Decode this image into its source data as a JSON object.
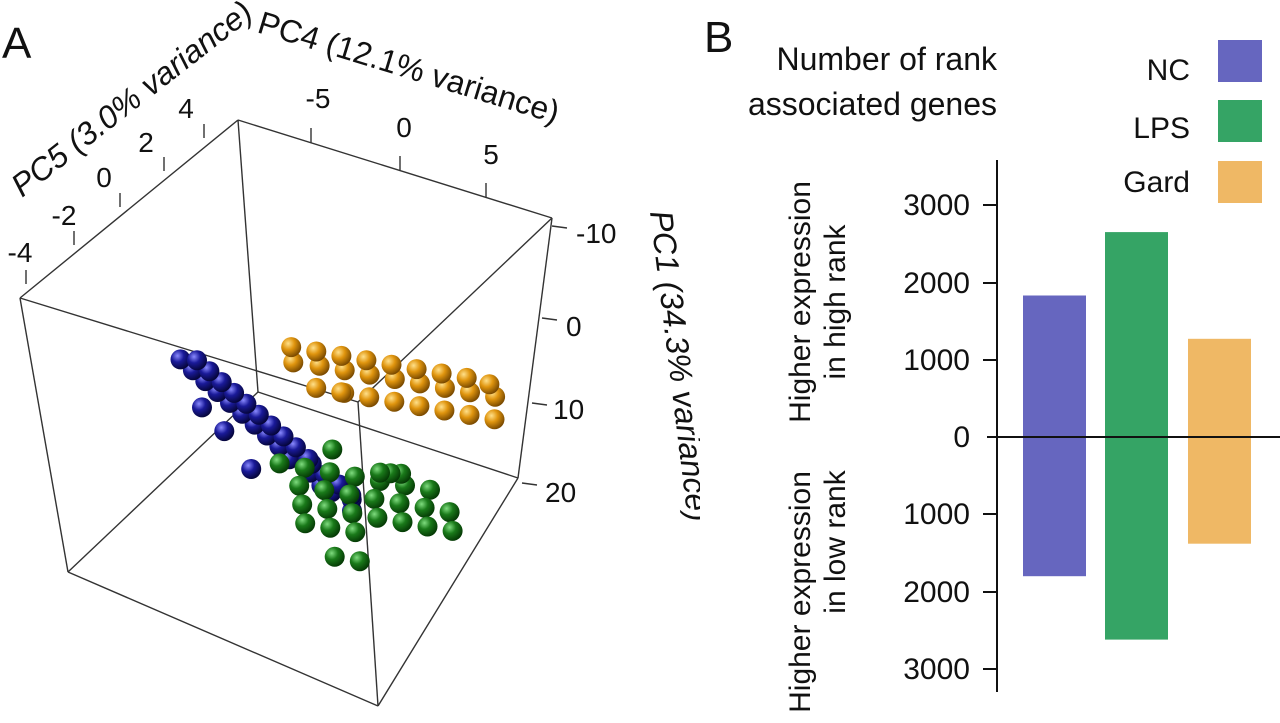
{
  "panel_a": {
    "letter": "A",
    "axes": {
      "pc4": {
        "title": "PC4 (12.1% variance)",
        "ticks": [
          "-5",
          "0",
          "5"
        ]
      },
      "pc5": {
        "title": "PC5 (3.0% variance)",
        "ticks": [
          "-4",
          "-2",
          "0",
          "2",
          "4"
        ]
      },
      "pc1": {
        "title": "PC1 (34.3% variance)",
        "ticks": [
          "-10",
          "0",
          "10",
          "20"
        ]
      }
    }
  },
  "panel_b": {
    "letter": "B",
    "title_line1": "Number of rank",
    "title_line2": "associated genes",
    "ylabel_high_line1": "Higher expression",
    "ylabel_high_line2": "in high rank",
    "ylabel_low_line1": "Higher expression",
    "ylabel_low_line2": "in low rank",
    "y_ticks": [
      "3000",
      "2000",
      "1000",
      "0",
      "1000",
      "2000",
      "3000"
    ],
    "legend": [
      {
        "label": "NC",
        "color": "#6666bf"
      },
      {
        "label": "LPS",
        "color": "#35a465"
      },
      {
        "label": "Gard",
        "color": "#efb865"
      }
    ]
  },
  "chart_data": [
    {
      "type": "scatter",
      "panel": "A",
      "dimensions": 3,
      "axis_titles": {
        "pc4": "PC4 (12.1% variance)",
        "pc5": "PC5 (3.0% variance)",
        "pc1": "PC1 (34.3% variance)"
      },
      "ranges": {
        "pc4": [
          -9,
          9
        ],
        "pc5": [
          -4,
          4
        ],
        "pc1": [
          -10,
          22
        ]
      },
      "series": [
        {
          "color": "#1a1a99",
          "points": [
            [
              -8.5,
              3.2,
              4.5
            ],
            [
              -7.8,
              3.0,
              4.3
            ],
            [
              -8.0,
              2.6,
              3.8
            ],
            [
              -7.2,
              2.8,
              4.8
            ],
            [
              -7.5,
              2.2,
              4.2
            ],
            [
              -6.8,
              2.4,
              4.6
            ],
            [
              -7.0,
              1.8,
              3.9
            ],
            [
              -6.5,
              2.0,
              4.4
            ],
            [
              -6.2,
              1.6,
              4.1
            ],
            [
              -6.6,
              1.2,
              3.7
            ],
            [
              -5.8,
              1.4,
              4.3
            ],
            [
              -6.0,
              0.8,
              3.5
            ],
            [
              -5.4,
              1.0,
              4.0
            ],
            [
              -5.6,
              0.4,
              3.3
            ],
            [
              -5.0,
              0.6,
              3.8
            ],
            [
              -5.2,
              0.0,
              3.1
            ],
            [
              -4.6,
              0.2,
              3.6
            ],
            [
              -4.8,
              -0.4,
              2.9
            ],
            [
              -4.2,
              -0.2,
              3.4
            ],
            [
              -4.4,
              -0.8,
              2.7
            ],
            [
              -3.8,
              -0.6,
              3.2
            ],
            [
              -4.0,
              -1.2,
              2.5
            ],
            [
              -3.4,
              -1.0,
              3.0
            ],
            [
              -3.6,
              -1.6,
              2.3
            ],
            [
              -3.0,
              -1.4,
              2.8
            ],
            [
              -3.2,
              -2.0,
              2.1
            ],
            [
              -2.6,
              -1.8,
              2.6
            ],
            [
              -2.8,
              -2.4,
              1.9
            ],
            [
              -2.2,
              -2.2,
              2.4
            ],
            [
              -6.9,
              -0.2,
              2.2
            ],
            [
              -5.9,
              -1.0,
              1.8
            ],
            [
              -8.9,
              1.0,
              2.5
            ]
          ]
        },
        {
          "color": "#e0950e",
          "points": [
            [
              -2.2,
              0.2,
              -1.0
            ],
            [
              -1.5,
              0.6,
              -0.4
            ],
            [
              -0.9,
              1.0,
              0.2
            ],
            [
              -0.3,
              1.4,
              0.8
            ],
            [
              0.3,
              1.8,
              1.4
            ],
            [
              0.9,
              2.2,
              2.0
            ],
            [
              1.5,
              2.6,
              2.6
            ],
            [
              2.1,
              3.0,
              3.2
            ],
            [
              2.7,
              3.4,
              3.8
            ],
            [
              -1.8,
              1.2,
              1.5
            ],
            [
              -1.2,
              1.6,
              2.1
            ],
            [
              -0.6,
              2.0,
              2.7
            ],
            [
              0.0,
              2.4,
              3.3
            ],
            [
              0.6,
              2.8,
              3.9
            ],
            [
              1.2,
              3.2,
              4.5
            ],
            [
              1.8,
              3.6,
              5.1
            ],
            [
              -1.0,
              -0.2,
              -0.8
            ],
            [
              -0.4,
              0.2,
              -0.2
            ],
            [
              0.2,
              0.6,
              0.4
            ],
            [
              0.8,
              1.0,
              1.0
            ],
            [
              1.4,
              1.4,
              1.6
            ],
            [
              2.0,
              1.8,
              2.2
            ],
            [
              2.6,
              2.2,
              2.8
            ],
            [
              3.2,
              2.6,
              3.4
            ],
            [
              -2.6,
              0.8,
              0.6
            ],
            [
              -2.0,
              1.2,
              1.2
            ],
            [
              3.6,
              3.0,
              4.0
            ]
          ]
        },
        {
          "color": "#1a7a1a",
          "points": [
            [
              -1.0,
              -1.0,
              14.0
            ],
            [
              -0.4,
              -0.6,
              14.6
            ],
            [
              0.2,
              -0.2,
              15.2
            ],
            [
              0.8,
              0.2,
              15.8
            ],
            [
              1.4,
              0.6,
              16.4
            ],
            [
              2.0,
              1.0,
              17.0
            ],
            [
              2.6,
              1.4,
              17.6
            ],
            [
              -1.6,
              -0.4,
              15.0
            ],
            [
              -1.0,
              0.0,
              15.6
            ],
            [
              -0.4,
              0.4,
              16.2
            ],
            [
              0.2,
              0.8,
              16.8
            ],
            [
              0.8,
              1.2,
              17.4
            ],
            [
              1.4,
              1.6,
              18.0
            ],
            [
              2.0,
              2.0,
              18.6
            ],
            [
              -2.2,
              -0.2,
              16.2
            ],
            [
              -1.6,
              0.2,
              16.8
            ],
            [
              -1.0,
              0.6,
              17.4
            ],
            [
              -0.4,
              1.0,
              18.0
            ],
            [
              0.2,
              1.4,
              18.6
            ],
            [
              0.8,
              1.8,
              19.2
            ],
            [
              1.4,
              2.2,
              19.8
            ],
            [
              -2.8,
              0.0,
              17.4
            ],
            [
              -2.2,
              0.4,
              18.0
            ],
            [
              -1.6,
              0.8,
              18.6
            ],
            [
              3.6,
              0.4,
              18.4
            ],
            [
              4.0,
              0.0,
              19.4
            ],
            [
              4.4,
              -0.4,
              20.4
            ],
            [
              -3.4,
              0.8,
              19.4
            ],
            [
              -2.8,
              1.2,
              20.0
            ],
            [
              2.4,
              -0.8,
              16.0
            ]
          ]
        }
      ]
    },
    {
      "type": "bar",
      "panel": "B",
      "title": "Number of rank associated genes",
      "categories": [
        "NC",
        "LPS",
        "Gard"
      ],
      "series": [
        {
          "name": "Higher expression in high rank",
          "values": [
            1830,
            2650,
            1270
          ]
        },
        {
          "name": "Higher expression in low rank",
          "values": [
            1800,
            2620,
            1380
          ]
        }
      ],
      "colors": [
        "#6666bf",
        "#35a465",
        "#efb865"
      ],
      "ylim": [
        -3000,
        3000
      ],
      "yticks": [
        3000,
        2000,
        1000,
        0,
        -1000,
        -2000,
        -3000
      ],
      "legend": "top-right"
    }
  ]
}
